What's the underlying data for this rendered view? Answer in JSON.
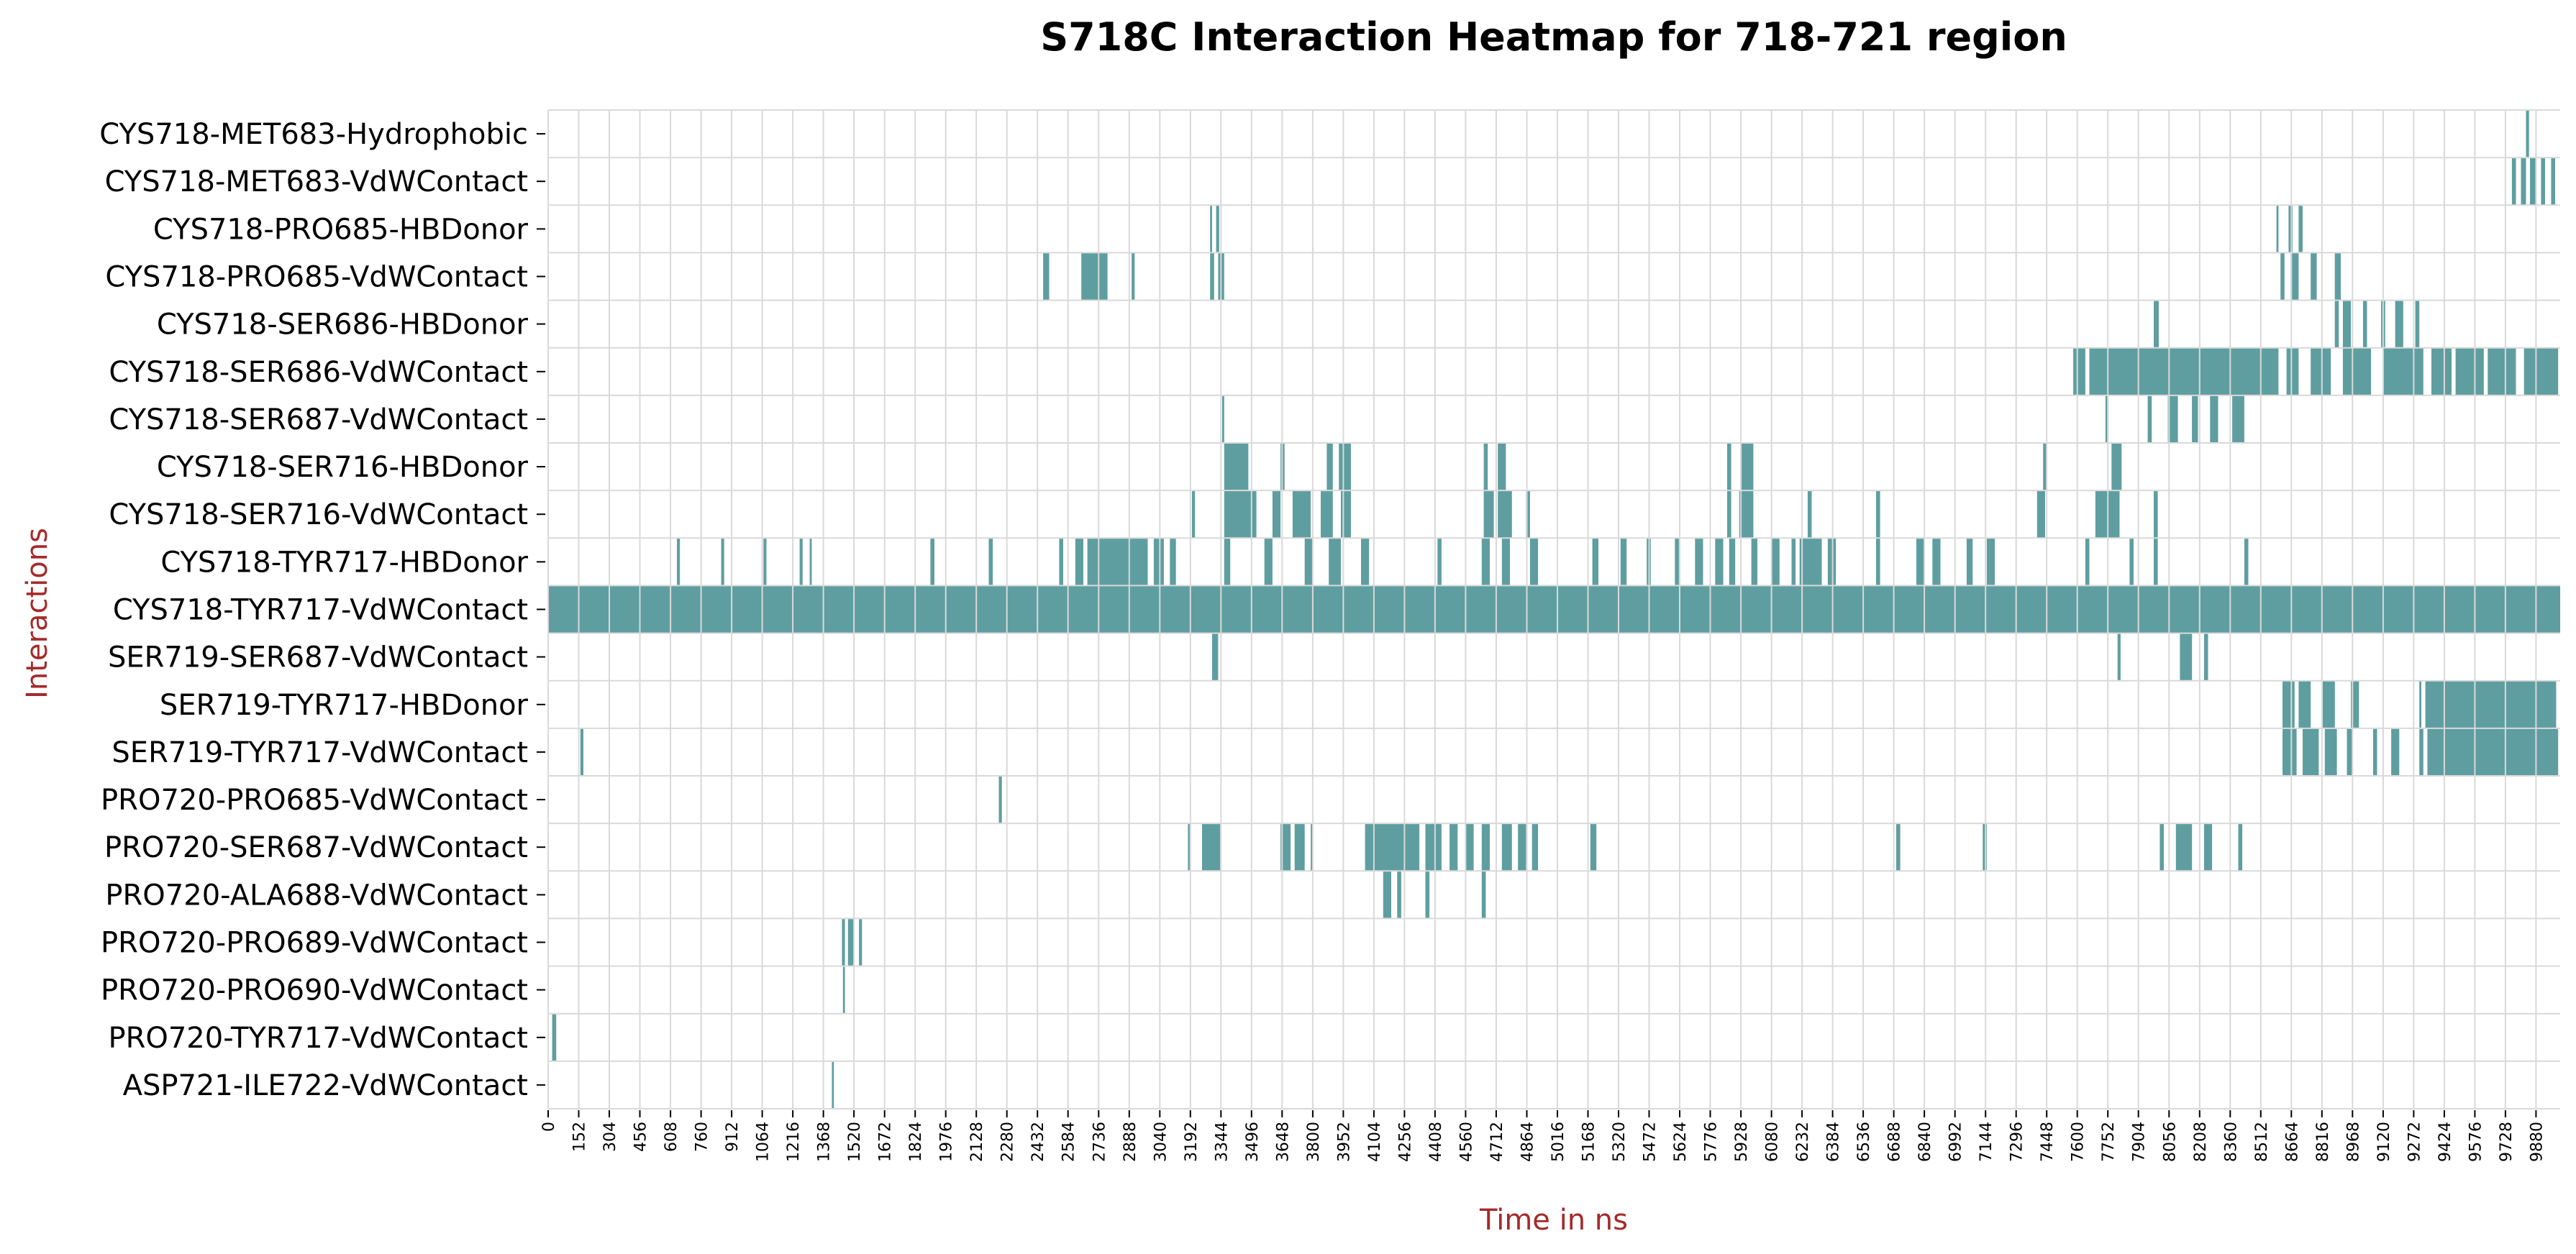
{
  "colors": {
    "cell": "#5f9ea0",
    "grid": "#d9d9d9",
    "axis_label": "#a52a2a",
    "text": "#000000",
    "background": "#ffffff"
  },
  "chart_data": {
    "type": "heatmap",
    "title": "S718C Interaction Heatmap for 718-721 region",
    "xlabel": "Time in ns",
    "ylabel": "Interactions",
    "xlim": [
      0,
      10000
    ],
    "grid": true,
    "x_ticks": [
      "0",
      "152",
      "304",
      "456",
      "608",
      "760",
      "912",
      "1064",
      "1216",
      "1368",
      "1520",
      "1672",
      "1824",
      "1976",
      "2128",
      "2280",
      "2432",
      "2584",
      "2736",
      "2888",
      "3040",
      "3192",
      "3344",
      "3496",
      "3648",
      "3800",
      "3952",
      "4104",
      "4256",
      "4408",
      "4560",
      "4712",
      "4864",
      "5016",
      "5168",
      "5320",
      "5472",
      "5624",
      "5776",
      "5928",
      "6080",
      "6232",
      "6384",
      "6536",
      "6688",
      "6840",
      "6992",
      "7144",
      "7296",
      "7448",
      "7600",
      "7752",
      "7904",
      "8056",
      "8208",
      "8360",
      "8512",
      "8664",
      "8816",
      "8968",
      "9120",
      "9272",
      "9424",
      "9576",
      "9728",
      "9880"
    ],
    "rows": [
      {
        "label": "CYS718-MET683-Hydrophobic",
        "events": [
          [
            9830,
            9845
          ]
        ]
      },
      {
        "label": "CYS718-MET683-VdWContact",
        "events": [
          [
            9760,
            9780
          ],
          [
            9805,
            9830
          ],
          [
            9850,
            9880
          ],
          [
            9905,
            9925
          ],
          [
            9955,
            9975
          ]
        ]
      },
      {
        "label": "CYS718-PRO685-HBDonor",
        "events": [
          [
            3290,
            3300
          ],
          [
            3320,
            3335
          ],
          [
            8590,
            8600
          ],
          [
            8650,
            8670
          ],
          [
            8700,
            8720
          ]
        ]
      },
      {
        "label": "CYS718-PRO685-VdWContact",
        "events": [
          [
            2460,
            2490
          ],
          [
            2650,
            2780
          ],
          [
            2900,
            2915
          ],
          [
            3290,
            3310
          ],
          [
            3330,
            3360
          ],
          [
            8610,
            8630
          ],
          [
            8660,
            8700
          ],
          [
            8760,
            8790
          ],
          [
            8880,
            8910
          ]
        ]
      },
      {
        "label": "CYS718-SER686-HBDonor",
        "events": [
          [
            7980,
            8005
          ],
          [
            8880,
            8900
          ],
          [
            8920,
            8960
          ],
          [
            9020,
            9040
          ],
          [
            9110,
            9130
          ],
          [
            9180,
            9220
          ],
          [
            9280,
            9300
          ]
        ]
      },
      {
        "label": "CYS718-SER686-VdWContact",
        "events": [
          [
            7580,
            7640
          ],
          [
            7660,
            8600
          ],
          [
            8640,
            8700
          ],
          [
            8760,
            8860
          ],
          [
            8920,
            9060
          ],
          [
            9120,
            9320
          ],
          [
            9360,
            9460
          ],
          [
            9480,
            9620
          ],
          [
            9640,
            9780
          ],
          [
            9820,
            9990
          ]
        ]
      },
      {
        "label": "CYS718-SER687-VdWContact",
        "events": [
          [
            3350,
            3360
          ],
          [
            7740,
            7755
          ],
          [
            7950,
            7970
          ],
          [
            8050,
            8100
          ],
          [
            8170,
            8200
          ],
          [
            8260,
            8300
          ],
          [
            8370,
            8430
          ]
        ]
      },
      {
        "label": "CYS718-SER716-HBDonor",
        "events": [
          [
            3360,
            3480
          ],
          [
            3640,
            3660
          ],
          [
            3870,
            3900
          ],
          [
            3930,
            3990
          ],
          [
            4650,
            4670
          ],
          [
            4720,
            4760
          ],
          [
            5860,
            5880
          ],
          [
            5930,
            5990
          ],
          [
            7430,
            7450
          ],
          [
            7770,
            7820
          ]
        ]
      },
      {
        "label": "CYS718-SER716-VdWContact",
        "events": [
          [
            3200,
            3215
          ],
          [
            3360,
            3520
          ],
          [
            3600,
            3640
          ],
          [
            3700,
            3790
          ],
          [
            3840,
            3900
          ],
          [
            3940,
            3990
          ],
          [
            4650,
            4700
          ],
          [
            4720,
            4790
          ],
          [
            4860,
            4880
          ],
          [
            5860,
            5880
          ],
          [
            5920,
            5990
          ],
          [
            6260,
            6280
          ],
          [
            6600,
            6620
          ],
          [
            7400,
            7440
          ],
          [
            7690,
            7810
          ],
          [
            7980,
            8000
          ]
        ]
      },
      {
        "label": "CYS718-TYR717-HBDonor",
        "events": [
          [
            640,
            655
          ],
          [
            860,
            875
          ],
          [
            1070,
            1085
          ],
          [
            1250,
            1265
          ],
          [
            1300,
            1310
          ],
          [
            1900,
            1920
          ],
          [
            2190,
            2210
          ],
          [
            2540,
            2560
          ],
          [
            2620,
            2660
          ],
          [
            2680,
            2980
          ],
          [
            3010,
            3060
          ],
          [
            3090,
            3120
          ],
          [
            3360,
            3390
          ],
          [
            3560,
            3600
          ],
          [
            3760,
            3800
          ],
          [
            3880,
            3940
          ],
          [
            4040,
            4080
          ],
          [
            4420,
            4440
          ],
          [
            4640,
            4680
          ],
          [
            4740,
            4780
          ],
          [
            4880,
            4920
          ],
          [
            5190,
            5220
          ],
          [
            5330,
            5360
          ],
          [
            5460,
            5480
          ],
          [
            5600,
            5620
          ],
          [
            5700,
            5740
          ],
          [
            5800,
            5840
          ],
          [
            5870,
            5900
          ],
          [
            5980,
            6010
          ],
          [
            6080,
            6120
          ],
          [
            6180,
            6200
          ],
          [
            6220,
            6330
          ],
          [
            6360,
            6400
          ],
          [
            6600,
            6620
          ],
          [
            6800,
            6840
          ],
          [
            6880,
            6920
          ],
          [
            7050,
            7080
          ],
          [
            7150,
            7190
          ],
          [
            7640,
            7660
          ],
          [
            7860,
            7880
          ],
          [
            7980,
            8000
          ],
          [
            8430,
            8450
          ]
        ]
      },
      {
        "label": "CYS718-TYR717-VdWContact",
        "events": [
          [
            0,
            10000
          ]
        ]
      },
      {
        "label": "SER719-SER687-VdWContact",
        "events": [
          [
            3300,
            3330
          ],
          [
            7800,
            7815
          ],
          [
            8110,
            8170
          ],
          [
            8230,
            8250
          ]
        ]
      },
      {
        "label": "SER719-TYR717-HBDonor",
        "events": [
          [
            8620,
            8680
          ],
          [
            8700,
            8760
          ],
          [
            8820,
            8880
          ],
          [
            8960,
            9000
          ],
          [
            9300,
            9310
          ],
          [
            9330,
            9980
          ]
        ]
      },
      {
        "label": "SER719-TYR717-VdWContact",
        "events": [
          [
            160,
            175
          ],
          [
            8620,
            8690
          ],
          [
            8720,
            8800
          ],
          [
            8830,
            8890
          ],
          [
            8940,
            8970
          ],
          [
            9070,
            9090
          ],
          [
            9160,
            9200
          ],
          [
            9300,
            9320
          ],
          [
            9340,
            9990
          ]
        ]
      },
      {
        "label": "PRO720-PRO685-VdWContact",
        "events": [
          [
            2240,
            2255
          ]
        ]
      },
      {
        "label": "PRO720-SER687-VdWContact",
        "events": [
          [
            3180,
            3195
          ],
          [
            3250,
            3340
          ],
          [
            3640,
            3690
          ],
          [
            3710,
            3760
          ],
          [
            3790,
            3800
          ],
          [
            4060,
            4330
          ],
          [
            4360,
            4440
          ],
          [
            4480,
            4520
          ],
          [
            4560,
            4600
          ],
          [
            4640,
            4680
          ],
          [
            4740,
            4790
          ],
          [
            4820,
            4860
          ],
          [
            4890,
            4920
          ],
          [
            5180,
            5210
          ],
          [
            6700,
            6720
          ],
          [
            7130,
            7150
          ],
          [
            8010,
            8030
          ],
          [
            8090,
            8170
          ],
          [
            8230,
            8270
          ],
          [
            8400,
            8420
          ]
        ]
      },
      {
        "label": "PRO720-ALA688-VdWContact",
        "events": [
          [
            4150,
            4190
          ],
          [
            4220,
            4240
          ],
          [
            4360,
            4380
          ],
          [
            4640,
            4660
          ]
        ]
      },
      {
        "label": "PRO720-PRO689-VdWContact",
        "events": [
          [
            1460,
            1475
          ],
          [
            1490,
            1520
          ],
          [
            1545,
            1560
          ]
        ]
      },
      {
        "label": "PRO720-PRO690-VdWContact",
        "events": [
          [
            1465,
            1475
          ]
        ]
      },
      {
        "label": "PRO720-TYR717-VdWContact",
        "events": [
          [
            20,
            40
          ]
        ]
      },
      {
        "label": "ASP721-ILE722-VdWContact",
        "events": [
          [
            1410,
            1420
          ]
        ]
      }
    ]
  }
}
